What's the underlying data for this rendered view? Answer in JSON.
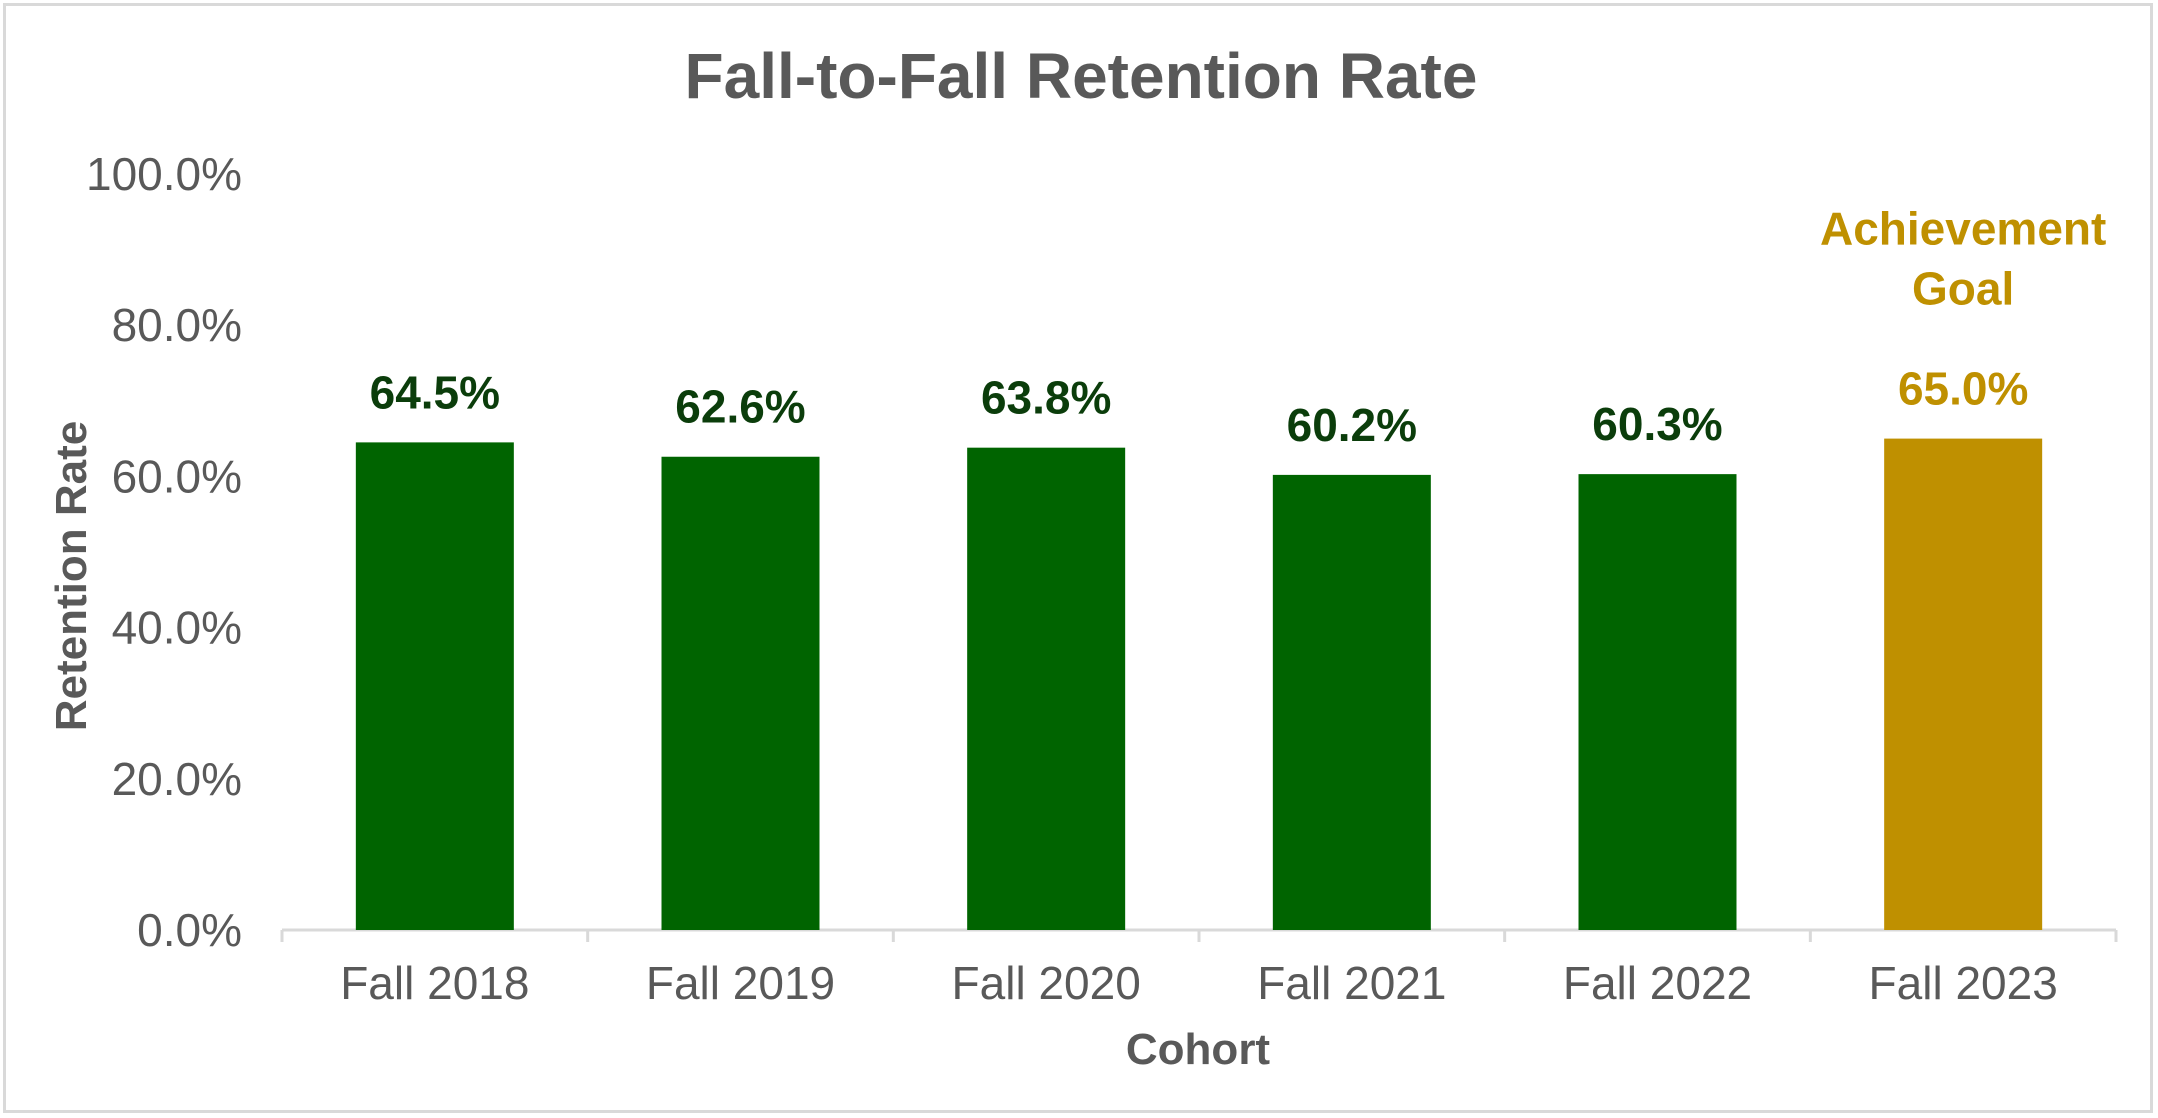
{
  "chart_data": {
    "type": "bar",
    "title": "Fall-to-Fall Retention Rate",
    "xlabel": "Cohort",
    "ylabel": "Retention Rate",
    "categories": [
      "Fall 2018",
      "Fall 2019",
      "Fall 2020",
      "Fall 2021",
      "Fall 2022",
      "Fall 2023"
    ],
    "values": [
      64.5,
      62.6,
      63.8,
      60.2,
      60.3,
      65.0
    ],
    "value_labels": [
      "64.5%",
      "62.6%",
      "63.8%",
      "60.2%",
      "60.3%",
      "65.0%"
    ],
    "ylim": [
      0,
      100
    ],
    "yticks": [
      0,
      20,
      40,
      60,
      80,
      100
    ],
    "ytick_labels": [
      "0.0%",
      "20.0%",
      "40.0%",
      "60.0%",
      "80.0%",
      "100.0%"
    ],
    "grid": false,
    "legend": "none",
    "annotations": [
      {
        "category": "Fall 2023",
        "lines": [
          "Achievement",
          "Goal"
        ]
      }
    ],
    "colors": {
      "bar": "#006400",
      "goal_bar": "#BF9000",
      "data_label": "#0B3D0B",
      "goal_label": "#BF9000",
      "axis_text": "#595959",
      "axis_line": "#d9d9d9"
    },
    "highlight_index": 5
  }
}
